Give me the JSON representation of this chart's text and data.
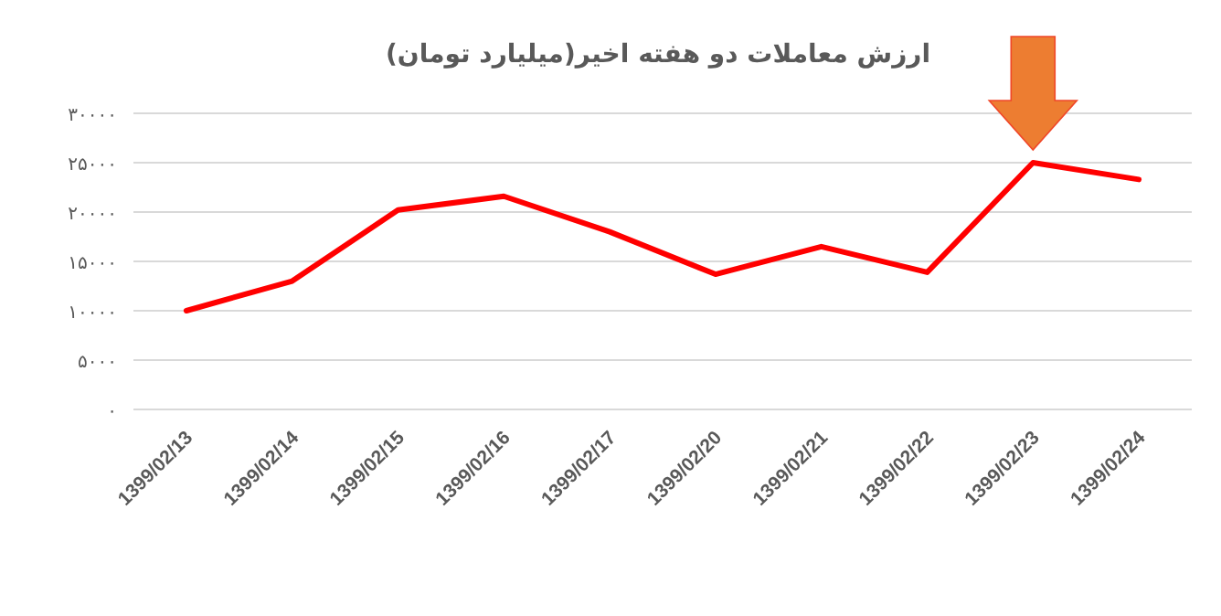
{
  "chart_data": {
    "type": "line",
    "title": "ارزش معاملات دو هفته اخیر(میلیارد تومان)",
    "categories": [
      "1399/02/13",
      "1399/02/14",
      "1399/02/15",
      "1399/02/16",
      "1399/02/17",
      "1399/02/20",
      "1399/02/21",
      "1399/02/22",
      "1399/02/23",
      "1399/02/24"
    ],
    "series": [
      {
        "color": "#ff0000",
        "values": [
          10000,
          13000,
          20200,
          21600,
          18000,
          13700,
          16500,
          13900,
          25000,
          23300
        ]
      }
    ],
    "ylim": [
      0,
      30000
    ],
    "yticks": [
      {
        "value": 0,
        "label": "۰"
      },
      {
        "value": 5000,
        "label": "۵۰۰۰"
      },
      {
        "value": 10000,
        "label": "۱۰۰۰۰"
      },
      {
        "value": 15000,
        "label": "۱۵۰۰۰"
      },
      {
        "value": 20000,
        "label": "۲۰۰۰۰"
      },
      {
        "value": 25000,
        "label": "۲۵۰۰۰"
      },
      {
        "value": 30000,
        "label": "۳۰۰۰۰"
      }
    ],
    "grid": "y",
    "marker": "none",
    "line_style": "solid"
  }
}
